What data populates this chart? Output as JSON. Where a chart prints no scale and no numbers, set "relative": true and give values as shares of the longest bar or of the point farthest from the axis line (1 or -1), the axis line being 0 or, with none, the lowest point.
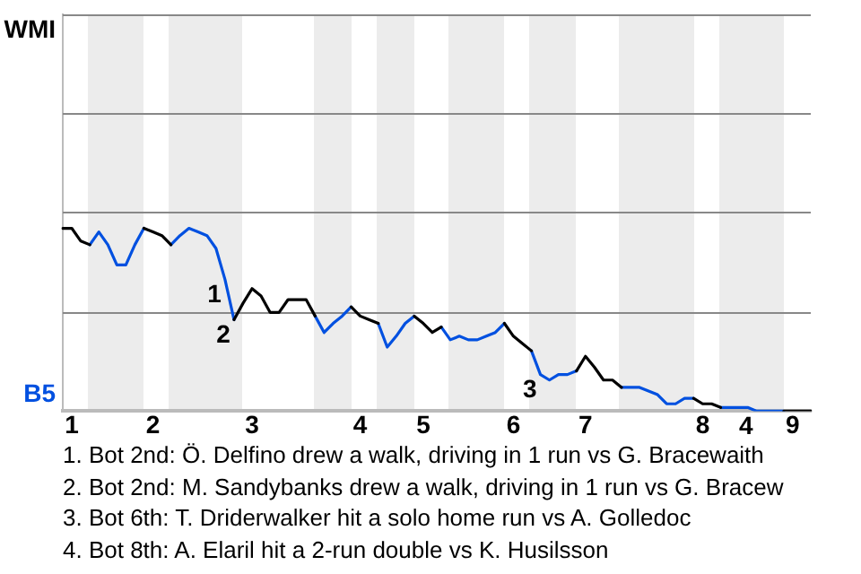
{
  "chart_data": {
    "type": "line",
    "relative": true,
    "categories": [
      null,
      "1",
      null,
      null,
      null,
      null,
      null,
      null,
      null,
      null,
      "2",
      null,
      null,
      null,
      null,
      null,
      null,
      null,
      null,
      null,
      null,
      "3",
      null,
      null,
      null,
      null,
      null,
      null,
      null,
      null,
      null,
      null,
      null,
      "4",
      null,
      null,
      null,
      null,
      null,
      null,
      "5",
      null,
      null,
      null,
      null,
      null,
      null,
      null,
      null,
      null,
      "6",
      null,
      null,
      null,
      null,
      null,
      null,
      null,
      "7",
      null,
      null,
      null,
      null,
      null,
      null,
      null,
      null,
      null,
      null,
      null,
      null,
      "8",
      null,
      null,
      null,
      null,
      null,
      null,
      null,
      null,
      null,
      "9",
      null,
      null
    ],
    "series": [
      {
        "name": "WMI",
        "color": "#000000",
        "values": [
          1,
          1,
          0.93,
          0.91,
          null,
          null,
          null,
          null,
          null,
          1,
          0.98,
          0.96,
          0.91,
          null,
          null,
          null,
          null,
          null,
          null,
          0.5,
          0.59,
          0.67,
          0.63,
          0.54,
          0.54,
          0.61,
          0.61,
          0.61,
          0.52,
          null,
          null,
          null,
          0.57,
          0.52,
          0.5,
          0.48,
          null,
          null,
          null,
          0.52,
          0.48,
          0.43,
          0.46,
          null,
          null,
          null,
          null,
          null,
          null,
          0.48,
          0.41,
          0.37,
          0.33,
          null,
          null,
          null,
          null,
          0.22,
          0.3,
          0.24,
          0.17,
          0.17,
          0.13,
          null,
          null,
          null,
          null,
          null,
          null,
          null,
          0.07,
          0.04,
          0.04,
          0.02,
          null,
          null,
          null,
          null,
          null,
          null,
          0,
          0,
          0,
          0
        ]
      },
      {
        "name": "B5",
        "color": "#0050e0",
        "values": [
          null,
          null,
          null,
          0.91,
          0.98,
          0.91,
          0.8,
          0.8,
          0.91,
          1,
          null,
          null,
          0.91,
          0.96,
          1,
          0.98,
          0.96,
          0.89,
          0.72,
          0.5,
          null,
          null,
          null,
          null,
          null,
          null,
          null,
          null,
          0.52,
          0.43,
          0.48,
          0.52,
          0.57,
          null,
          null,
          0.48,
          0.35,
          0.41,
          0.48,
          0.52,
          null,
          null,
          0.46,
          0.39,
          0.41,
          0.39,
          0.39,
          0.41,
          0.43,
          0.48,
          null,
          null,
          0.33,
          0.2,
          0.17,
          0.2,
          0.2,
          0.22,
          null,
          null,
          null,
          null,
          0.13,
          0.13,
          0.13,
          0.11,
          0.09,
          0.04,
          0.04,
          0.07,
          0.07,
          null,
          null,
          0.02,
          0.02,
          0.02,
          0.02,
          0,
          0,
          0,
          0,
          null,
          null,
          null
        ]
      }
    ],
    "legend": false,
    "marker": "none",
    "line_style": "solid",
    "ref_lines": [
      {
        "axis": "y",
        "value": 0.54,
        "color": "#888888"
      },
      {
        "axis": "y",
        "value": 1.09,
        "color": "#888888"
      },
      {
        "axis": "y",
        "value": 1.63,
        "color": "#888888"
      },
      {
        "axis": "y",
        "value": 2.17,
        "color": "#888888"
      }
    ],
    "annotations": [
      {
        "text": "1",
        "y": 0.72
      },
      {
        "text": "2",
        "y": 0.5
      },
      {
        "text": "3",
        "y": 0.2
      },
      {
        "text": "4",
        "y": 0
      },
      "1. Bot 2nd: Ö. Delfino drew a walk, driving in 1 run vs G. Bracewaith",
      "2. Bot 2nd: M. Sandybanks drew a walk, driving in 1 run vs G. Bracew",
      "3. Bot 6th: T. Driderwalker hit a solo home run vs A. Golledoc",
      "4. Bot 8th: A. Elaril hit a 2-run double vs K. Husilsson"
    ]
  }
}
